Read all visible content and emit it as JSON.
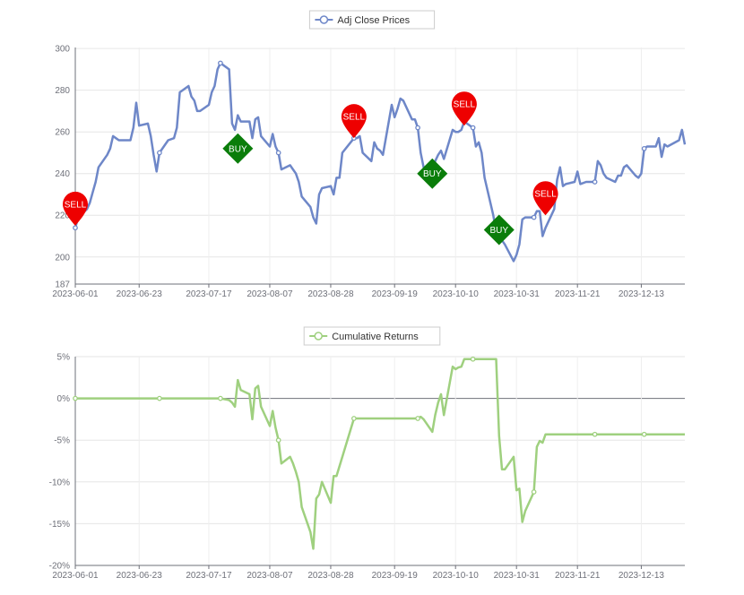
{
  "chart_data": [
    {
      "type": "line",
      "title": "",
      "legend": {
        "label": "Adj Close Prices",
        "position": "top-center"
      },
      "color": "#6e87c8",
      "x_tick_labels": [
        "2023-06-01",
        "2023-06-23",
        "2023-07-17",
        "2023-08-07",
        "2023-08-28",
        "2023-09-19",
        "2023-10-10",
        "2023-10-31",
        "2023-11-21",
        "2023-12-13"
      ],
      "y_tick_labels": [
        "187",
        "200",
        "220",
        "240",
        "260",
        "280",
        "300"
      ],
      "ylim": [
        187,
        300.5
      ],
      "grid": true,
      "series": [
        {
          "name": "Adj Close Prices",
          "points": [
            [
              "2023-06-01",
              214.0
            ],
            [
              "2023-06-02",
              219.0
            ],
            [
              "2023-06-05",
              223.0
            ],
            [
              "2023-06-06",
              226.0
            ],
            [
              "2023-06-07",
              231.0
            ],
            [
              "2023-06-08",
              236.0
            ],
            [
              "2023-06-09",
              243.0
            ],
            [
              "2023-06-12",
              249.0
            ],
            [
              "2023-06-13",
              252.0
            ],
            [
              "2023-06-14",
              258.0
            ],
            [
              "2023-06-15",
              257.0
            ],
            [
              "2023-06-16",
              256.0
            ],
            [
              "2023-06-20",
              256.0
            ],
            [
              "2023-06-21",
              262.0
            ],
            [
              "2023-06-22",
              274.0
            ],
            [
              "2023-06-23",
              263.0
            ],
            [
              "2023-06-26",
              264.0
            ],
            [
              "2023-06-27",
              258.0
            ],
            [
              "2023-06-28",
              249.0
            ],
            [
              "2023-06-29",
              241.0
            ],
            [
              "2023-06-30",
              250.0
            ],
            [
              "2023-07-03",
              256.0
            ],
            [
              "2023-07-05",
              257.0
            ],
            [
              "2023-07-06",
              262.0
            ],
            [
              "2023-07-07",
              279.0
            ],
            [
              "2023-07-10",
              282.0
            ],
            [
              "2023-07-11",
              277.0
            ],
            [
              "2023-07-12",
              275.0
            ],
            [
              "2023-07-13",
              270.0
            ],
            [
              "2023-07-14",
              270.0
            ],
            [
              "2023-07-17",
              273.0
            ],
            [
              "2023-07-18",
              279.0
            ],
            [
              "2023-07-19",
              282.0
            ],
            [
              "2023-07-20",
              290.0
            ],
            [
              "2023-07-21",
              293.0
            ],
            [
              "2023-07-24",
              290.0
            ],
            [
              "2023-07-25",
              264.0
            ],
            [
              "2023-07-26",
              261.0
            ],
            [
              "2023-07-27",
              268.0
            ],
            [
              "2023-07-28",
              265.0
            ],
            [
              "2023-07-31",
              265.0
            ],
            [
              "2023-08-01",
              257.0
            ],
            [
              "2023-08-02",
              266.0
            ],
            [
              "2023-08-03",
              267.0
            ],
            [
              "2023-08-04",
              258.0
            ],
            [
              "2023-08-07",
              253.0
            ],
            [
              "2023-08-08",
              259.0
            ],
            [
              "2023-08-09",
              253.0
            ],
            [
              "2023-08-10",
              250.0
            ],
            [
              "2023-08-11",
              242.0
            ],
            [
              "2023-08-14",
              244.0
            ],
            [
              "2023-08-15",
              242.0
            ],
            [
              "2023-08-16",
              240.0
            ],
            [
              "2023-08-17",
              236.0
            ],
            [
              "2023-08-18",
              229.0
            ],
            [
              "2023-08-21",
              224.0
            ],
            [
              "2023-08-22",
              219.0
            ],
            [
              "2023-08-23",
              216.0
            ],
            [
              "2023-08-24",
              230.0
            ],
            [
              "2023-08-25",
              233.0
            ],
            [
              "2023-08-28",
              234.0
            ],
            [
              "2023-08-29",
              230.0
            ],
            [
              "2023-08-30",
              238.0
            ],
            [
              "2023-08-31",
              238.0
            ],
            [
              "2023-09-01",
              250.0
            ],
            [
              "2023-09-05",
              257.0
            ],
            [
              "2023-09-06",
              257.0
            ],
            [
              "2023-09-07",
              258.0
            ],
            [
              "2023-09-08",
              250.0
            ],
            [
              "2023-09-11",
              246.0
            ],
            [
              "2023-09-12",
              255.0
            ],
            [
              "2023-09-13",
              252.0
            ],
            [
              "2023-09-14",
              251.0
            ],
            [
              "2023-09-15",
              249.0
            ],
            [
              "2023-09-18",
              273.0
            ],
            [
              "2023-09-19",
              267.0
            ],
            [
              "2023-09-20",
              271.0
            ],
            [
              "2023-09-21",
              276.0
            ],
            [
              "2023-09-22",
              275.0
            ],
            [
              "2023-09-25",
              266.0
            ],
            [
              "2023-09-26",
              266.0
            ],
            [
              "2023-09-27",
              262.0
            ],
            [
              "2023-09-28",
              250.0
            ],
            [
              "2023-09-29",
              243.0
            ],
            [
              "2023-10-02",
              240.0
            ],
            [
              "2023-10-03",
              246.0
            ],
            [
              "2023-10-04",
              249.0
            ],
            [
              "2023-10-05",
              251.0
            ],
            [
              "2023-10-06",
              247.0
            ],
            [
              "2023-10-09",
              261.0
            ],
            [
              "2023-10-10",
              260.0
            ],
            [
              "2023-10-11",
              260.0
            ],
            [
              "2023-10-12",
              261.0
            ],
            [
              "2023-10-13",
              265.0
            ],
            [
              "2023-10-16",
              262.0
            ],
            [
              "2023-10-17",
              253.0
            ],
            [
              "2023-10-18",
              255.0
            ],
            [
              "2023-10-19",
              250.0
            ],
            [
              "2023-10-20",
              238.0
            ],
            [
              "2023-10-23",
              220.0
            ],
            [
              "2023-10-24",
              212.0
            ],
            [
              "2023-10-25",
              216.0
            ],
            [
              "2023-10-26",
              208.0
            ],
            [
              "2023-10-27",
              206.0
            ],
            [
              "2023-10-30",
              198.0
            ],
            [
              "2023-10-31",
              201.0
            ],
            [
              "2023-11-01",
              206.0
            ],
            [
              "2023-11-02",
              218.0
            ],
            [
              "2023-11-03",
              219.0
            ],
            [
              "2023-11-06",
              219.0
            ],
            [
              "2023-11-07",
              222.0
            ],
            [
              "2023-11-08",
              222.0
            ],
            [
              "2023-11-09",
              210.0
            ],
            [
              "2023-11-10",
              214.0
            ],
            [
              "2023-11-13",
              223.0
            ],
            [
              "2023-11-14",
              237.0
            ],
            [
              "2023-11-15",
              243.0
            ],
            [
              "2023-11-16",
              234.0
            ],
            [
              "2023-11-17",
              235.0
            ],
            [
              "2023-11-20",
              236.0
            ],
            [
              "2023-11-21",
              241.0
            ],
            [
              "2023-11-22",
              235.0
            ],
            [
              "2023-11-24",
              236.0
            ],
            [
              "2023-11-27",
              236.0
            ],
            [
              "2023-11-28",
              246.0
            ],
            [
              "2023-11-29",
              244.0
            ],
            [
              "2023-11-30",
              240.0
            ],
            [
              "2023-12-01",
              238.0
            ],
            [
              "2023-12-04",
              236.0
            ],
            [
              "2023-12-05",
              239.0
            ],
            [
              "2023-12-06",
              239.0
            ],
            [
              "2023-12-07",
              243.0
            ],
            [
              "2023-12-08",
              244.0
            ],
            [
              "2023-12-11",
              239.0
            ],
            [
              "2023-12-12",
              238.0
            ],
            [
              "2023-12-13",
              240.0
            ],
            [
              "2023-12-14",
              252.0
            ],
            [
              "2023-12-15",
              253.0
            ],
            [
              "2023-12-18",
              253.0
            ],
            [
              "2023-12-19",
              257.0
            ],
            [
              "2023-12-20",
              248.0
            ],
            [
              "2023-12-21",
              254.0
            ],
            [
              "2023-12-22",
              253.0
            ],
            [
              "2023-12-26",
              256.0
            ],
            [
              "2023-12-27",
              261.0
            ],
            [
              "2023-12-28",
              254.0
            ]
          ],
          "hollow_markers_at": [
            "2023-06-01",
            "2023-06-30",
            "2023-07-21",
            "2023-08-10",
            "2023-09-05",
            "2023-09-27",
            "2023-10-16",
            "2023-11-06",
            "2023-11-27",
            "2023-12-14"
          ]
        }
      ],
      "annotations": [
        {
          "label": "SELL",
          "kind": "pin",
          "color": "#ee0000",
          "x": "2023-06-01",
          "y": 215
        },
        {
          "label": "BUY",
          "kind": "diamond",
          "color": "#0a7d0a",
          "x": "2023-07-27",
          "y": 252
        },
        {
          "label": "SELL",
          "kind": "pin",
          "color": "#ee0000",
          "x": "2023-09-05",
          "y": 257
        },
        {
          "label": "BUY",
          "kind": "diamond",
          "color": "#0a7d0a",
          "x": "2023-10-02",
          "y": 240
        },
        {
          "label": "SELL",
          "kind": "pin",
          "color": "#ee0000",
          "x": "2023-10-13",
          "y": 263
        },
        {
          "label": "BUY",
          "kind": "diamond",
          "color": "#0a7d0a",
          "x": "2023-10-25",
          "y": 213
        },
        {
          "label": "SELL",
          "kind": "pin",
          "color": "#ee0000",
          "x": "2023-11-10",
          "y": 220
        }
      ]
    },
    {
      "type": "line",
      "title": "",
      "legend": {
        "label": "Cumulative Returns",
        "position": "top-center"
      },
      "color": "#9fd07f",
      "x_tick_labels": [
        "2023-06-01",
        "2023-06-23",
        "2023-07-17",
        "2023-08-07",
        "2023-08-28",
        "2023-09-19",
        "2023-10-10",
        "2023-10-31",
        "2023-11-21",
        "2023-12-13"
      ],
      "y_tick_labels": [
        "-20%",
        "-15%",
        "-10%",
        "-5%",
        "0%",
        "5%"
      ],
      "ylim": [
        -20,
        5
      ],
      "grid": true,
      "series": [
        {
          "name": "Cumulative Returns",
          "points": [
            [
              "2023-06-01",
              0.0
            ],
            [
              "2023-06-30",
              0.0
            ],
            [
              "2023-07-21",
              0.0
            ],
            [
              "2023-07-24",
              -0.2
            ],
            [
              "2023-07-25",
              -0.5
            ],
            [
              "2023-07-26",
              -1.0
            ],
            [
              "2023-07-27",
              2.2
            ],
            [
              "2023-07-28",
              1.0
            ],
            [
              "2023-07-31",
              0.5
            ],
            [
              "2023-08-01",
              -2.5
            ],
            [
              "2023-08-02",
              1.2
            ],
            [
              "2023-08-03",
              1.5
            ],
            [
              "2023-08-04",
              -1.0
            ],
            [
              "2023-08-07",
              -3.3
            ],
            [
              "2023-08-08",
              -1.5
            ],
            [
              "2023-08-09",
              -3.5
            ],
            [
              "2023-08-10",
              -5.0
            ],
            [
              "2023-08-11",
              -7.8
            ],
            [
              "2023-08-14",
              -7.0
            ],
            [
              "2023-08-15",
              -7.8
            ],
            [
              "2023-08-16",
              -8.8
            ],
            [
              "2023-08-17",
              -10.0
            ],
            [
              "2023-08-18",
              -13.0
            ],
            [
              "2023-08-21",
              -16.0
            ],
            [
              "2023-08-22",
              -18.0
            ],
            [
              "2023-08-23",
              -12.0
            ],
            [
              "2023-08-24",
              -11.5
            ],
            [
              "2023-08-25",
              -10.0
            ],
            [
              "2023-08-28",
              -12.5
            ],
            [
              "2023-08-29",
              -9.3
            ],
            [
              "2023-08-30",
              -9.3
            ],
            [
              "2023-09-05",
              -2.4
            ],
            [
              "2023-09-27",
              -2.4
            ],
            [
              "2023-09-28",
              -2.2
            ],
            [
              "2023-09-29",
              -2.5
            ],
            [
              "2023-10-02",
              -4.0
            ],
            [
              "2023-10-03",
              -2.0
            ],
            [
              "2023-10-04",
              -0.5
            ],
            [
              "2023-10-05",
              0.5
            ],
            [
              "2023-10-06",
              -2.0
            ],
            [
              "2023-10-09",
              3.8
            ],
            [
              "2023-10-10",
              3.5
            ],
            [
              "2023-10-11",
              3.7
            ],
            [
              "2023-10-12",
              3.8
            ],
            [
              "2023-10-13",
              4.7
            ],
            [
              "2023-10-24",
              4.7
            ],
            [
              "2023-10-25",
              -4.5
            ],
            [
              "2023-10-26",
              -8.5
            ],
            [
              "2023-10-27",
              -8.5
            ],
            [
              "2023-10-30",
              -7.0
            ],
            [
              "2023-10-31",
              -11.0
            ],
            [
              "2023-11-01",
              -10.8
            ],
            [
              "2023-11-02",
              -14.8
            ],
            [
              "2023-11-03",
              -13.5
            ],
            [
              "2023-11-06",
              -11.2
            ],
            [
              "2023-11-07",
              -5.8
            ],
            [
              "2023-11-08",
              -5.1
            ],
            [
              "2023-11-09",
              -5.3
            ],
            [
              "2023-11-10",
              -4.3
            ],
            [
              "2023-12-28",
              -4.3
            ]
          ],
          "hollow_markers_at": [
            "2023-06-01",
            "2023-06-30",
            "2023-07-21",
            "2023-08-10",
            "2023-09-05",
            "2023-09-27",
            "2023-10-16",
            "2023-11-06",
            "2023-11-27",
            "2023-12-14"
          ]
        }
      ]
    }
  ]
}
